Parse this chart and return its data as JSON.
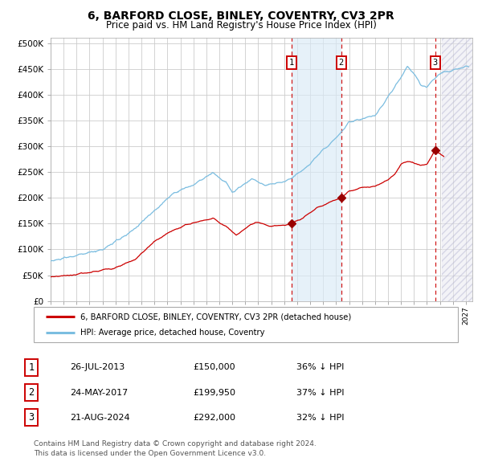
{
  "title": "6, BARFORD CLOSE, BINLEY, COVENTRY, CV3 2PR",
  "subtitle": "Price paid vs. HM Land Registry's House Price Index (HPI)",
  "title_fontsize": 10,
  "subtitle_fontsize": 8.5,
  "ylabel_ticks": [
    "£0",
    "£50K",
    "£100K",
    "£150K",
    "£200K",
    "£250K",
    "£300K",
    "£350K",
    "£400K",
    "£450K",
    "£500K"
  ],
  "ytick_values": [
    0,
    50000,
    100000,
    150000,
    200000,
    250000,
    300000,
    350000,
    400000,
    450000,
    500000
  ],
  "ylim": [
    0,
    510000
  ],
  "xlim_start": 1995.0,
  "xlim_end": 2027.5,
  "hpi_color": "#7bbde0",
  "price_color": "#cc0000",
  "marker_color": "#990000",
  "dashed_line_color": "#cc0000",
  "sale_dates": [
    2013.57,
    2017.39,
    2024.64
  ],
  "sale_prices": [
    150000,
    199950,
    292000
  ],
  "sale_labels": [
    "1",
    "2",
    "3"
  ],
  "sale_date_strs": [
    "26-JUL-2013",
    "24-MAY-2017",
    "21-AUG-2024"
  ],
  "sale_price_strs": [
    "£150,000",
    "£199,950",
    "£292,000"
  ],
  "sale_hpi_strs": [
    "36% ↓ HPI",
    "37% ↓ HPI",
    "32% ↓ HPI"
  ],
  "legend_entries": [
    "6, BARFORD CLOSE, BINLEY, COVENTRY, CV3 2PR (detached house)",
    "HPI: Average price, detached house, Coventry"
  ],
  "footnote": "Contains HM Land Registry data © Crown copyright and database right 2024.\nThis data is licensed under the Open Government Licence v3.0.",
  "bg_color": "#ffffff",
  "grid_color": "#cccccc",
  "shaded_region_color": "#daeaf7",
  "hatch_region_start": 2025.17
}
